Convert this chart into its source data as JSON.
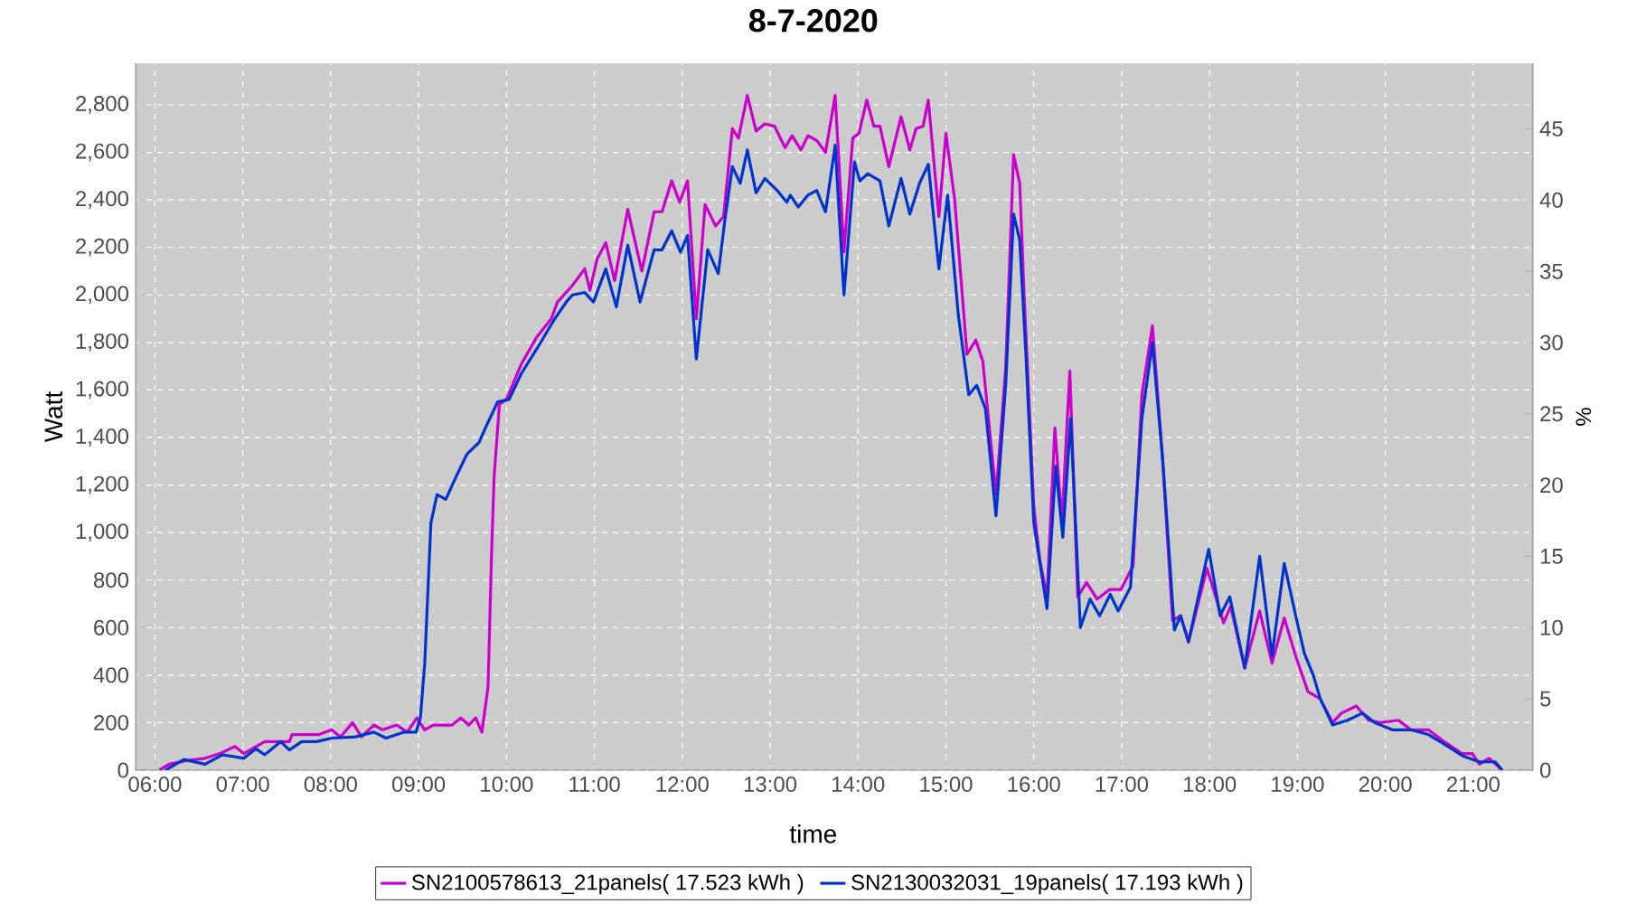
{
  "chart_data": {
    "type": "line",
    "title": "8-7-2020",
    "xlabel": "time",
    "ylabel": "Watt",
    "y2label": "%",
    "xlim": [
      5.78,
      21.68
    ],
    "xticks": [
      {
        "value": 6,
        "label": "06:00"
      },
      {
        "value": 7,
        "label": "07:00"
      },
      {
        "value": 8,
        "label": "08:00"
      },
      {
        "value": 9,
        "label": "09:00"
      },
      {
        "value": 10,
        "label": "10:00"
      },
      {
        "value": 11,
        "label": "11:00"
      },
      {
        "value": 12,
        "label": "12:00"
      },
      {
        "value": 13,
        "label": "13:00"
      },
      {
        "value": 14,
        "label": "14:00"
      },
      {
        "value": 15,
        "label": "15:00"
      },
      {
        "value": 16,
        "label": "16:00"
      },
      {
        "value": 17,
        "label": "17:00"
      },
      {
        "value": 18,
        "label": "18:00"
      },
      {
        "value": 19,
        "label": "19:00"
      },
      {
        "value": 20,
        "label": "20:00"
      },
      {
        "value": 21,
        "label": "21:00"
      }
    ],
    "ylim": [
      0,
      2975
    ],
    "yticks": [
      0,
      200,
      400,
      600,
      800,
      {
        "value": 1000,
        "label": "1,000"
      },
      {
        "value": 1200,
        "label": "1,200"
      },
      {
        "value": 1400,
        "label": "1,400"
      },
      {
        "value": 1600,
        "label": "1,600"
      },
      {
        "value": 1800,
        "label": "1,800"
      },
      {
        "value": 2000,
        "label": "2,000"
      },
      {
        "value": 2200,
        "label": "2,200"
      },
      {
        "value": 2400,
        "label": "2,400"
      },
      {
        "value": 2600,
        "label": "2,600"
      },
      {
        "value": 2800,
        "label": "2,800"
      }
    ],
    "y2lim": [
      0,
      49.6
    ],
    "y2ticks": [
      0,
      5,
      10,
      15,
      20,
      25,
      30,
      35,
      40,
      45
    ],
    "grid": true,
    "legend": "bottom",
    "line_style": "solid",
    "series": [
      {
        "name": "SN2100578613_21panels( 17.523 kWh )",
        "color": "#cc00cc",
        "x": [
          6.05,
          6.16,
          6.36,
          6.57,
          6.74,
          6.91,
          7.01,
          7.25,
          7.53,
          7.56,
          7.87,
          8.01,
          8.11,
          8.25,
          8.35,
          8.49,
          8.59,
          8.75,
          8.87,
          8.98,
          9.07,
          9.17,
          9.38,
          9.48,
          9.57,
          9.65,
          9.72,
          9.79,
          9.83,
          9.86,
          9.92,
          10.0,
          10.17,
          10.34,
          10.51,
          10.58,
          10.75,
          10.89,
          10.95,
          11.03,
          11.13,
          11.23,
          11.38,
          11.54,
          11.68,
          11.77,
          11.88,
          11.97,
          12.06,
          12.16,
          12.26,
          12.38,
          12.47,
          12.57,
          12.64,
          12.74,
          12.84,
          12.94,
          13.05,
          13.17,
          13.25,
          13.35,
          13.43,
          13.53,
          13.63,
          13.74,
          13.84,
          13.94,
          14.01,
          14.1,
          14.18,
          14.25,
          14.35,
          14.49,
          14.59,
          14.66,
          14.74,
          14.8,
          14.92,
          15.0,
          15.1,
          15.24,
          15.34,
          15.42,
          15.57,
          15.68,
          15.77,
          15.84,
          15.89,
          16.0,
          16.07,
          16.15,
          16.24,
          16.32,
          16.41,
          16.5,
          16.6,
          16.72,
          16.86,
          16.99,
          17.13,
          17.23,
          17.35,
          17.46,
          17.58,
          17.67,
          17.76,
          17.97,
          18.16,
          18.24,
          18.4,
          18.57,
          18.71,
          18.85,
          18.98,
          19.12,
          19.26,
          19.4,
          19.5,
          19.67,
          19.81,
          19.94,
          20.15,
          20.29,
          20.49,
          20.67,
          20.87,
          20.99,
          21.07,
          21.18,
          21.33
        ],
        "values": [
          0,
          25,
          40,
          50,
          70,
          100,
          70,
          120,
          120,
          150,
          150,
          170,
          140,
          200,
          140,
          190,
          170,
          190,
          160,
          220,
          170,
          190,
          190,
          220,
          190,
          220,
          160,
          350,
          910,
          1240,
          1540,
          1560,
          1710,
          1820,
          1900,
          1970,
          2040,
          2110,
          2020,
          2150,
          2220,
          2060,
          2360,
          2100,
          2350,
          2350,
          2480,
          2390,
          2480,
          1900,
          2380,
          2290,
          2330,
          2700,
          2660,
          2840,
          2690,
          2720,
          2710,
          2620,
          2670,
          2610,
          2670,
          2650,
          2600,
          2840,
          2180,
          2660,
          2680,
          2820,
          2710,
          2710,
          2540,
          2750,
          2610,
          2700,
          2710,
          2820,
          2330,
          2680,
          2400,
          1750,
          1810,
          1720,
          1160,
          1690,
          2590,
          2470,
          2000,
          1110,
          880,
          730,
          1440,
          1040,
          1680,
          730,
          790,
          720,
          760,
          760,
          860,
          1580,
          1870,
          1340,
          630,
          650,
          540,
          850,
          620,
          690,
          430,
          670,
          450,
          640,
          480,
          330,
          300,
          200,
          240,
          270,
          210,
          200,
          210,
          170,
          170,
          120,
          70,
          70,
          25,
          50,
          0
        ]
      },
      {
        "name": "SN2130032031_19panels( 17.193 kWh )",
        "color": "#0033cc",
        "x": [
          6.12,
          6.33,
          6.57,
          6.77,
          7.01,
          7.15,
          7.25,
          7.43,
          7.53,
          7.67,
          7.84,
          8.01,
          8.28,
          8.49,
          8.63,
          8.83,
          8.97,
          9.02,
          9.07,
          9.14,
          9.21,
          9.31,
          9.42,
          9.55,
          9.69,
          9.76,
          9.9,
          10.03,
          10.17,
          10.34,
          10.55,
          10.68,
          10.75,
          10.89,
          10.99,
          11.13,
          11.25,
          11.38,
          11.52,
          11.68,
          11.77,
          11.88,
          11.98,
          12.06,
          12.16,
          12.29,
          12.41,
          12.48,
          12.57,
          12.66,
          12.74,
          12.84,
          12.94,
          13.08,
          13.19,
          13.23,
          13.32,
          13.43,
          13.53,
          13.63,
          13.74,
          13.84,
          13.96,
          14.02,
          14.11,
          14.25,
          14.35,
          14.49,
          14.59,
          14.7,
          14.8,
          14.92,
          15.02,
          15.14,
          15.26,
          15.35,
          15.45,
          15.57,
          15.68,
          15.77,
          15.84,
          15.91,
          16.0,
          16.15,
          16.25,
          16.33,
          16.42,
          16.53,
          16.64,
          16.75,
          16.87,
          16.96,
          17.1,
          17.23,
          17.35,
          17.47,
          17.6,
          17.67,
          17.76,
          17.99,
          18.12,
          18.23,
          18.4,
          18.57,
          18.71,
          18.85,
          18.98,
          19.08,
          19.18,
          19.26,
          19.4,
          19.57,
          19.74,
          19.88,
          20.08,
          20.29,
          20.49,
          20.67,
          20.88,
          21.07,
          21.25,
          21.33
        ],
        "values": [
          0,
          45,
          25,
          65,
          50,
          90,
          65,
          120,
          85,
          120,
          120,
          135,
          140,
          160,
          135,
          160,
          160,
          220,
          450,
          1040,
          1160,
          1140,
          1230,
          1330,
          1380,
          1440,
          1550,
          1560,
          1670,
          1770,
          1900,
          1970,
          2000,
          2010,
          1970,
          2110,
          1950,
          2210,
          1970,
          2190,
          2190,
          2270,
          2180,
          2250,
          1730,
          2190,
          2090,
          2300,
          2540,
          2470,
          2610,
          2430,
          2490,
          2440,
          2390,
          2420,
          2370,
          2420,
          2440,
          2350,
          2630,
          2000,
          2560,
          2480,
          2510,
          2480,
          2290,
          2490,
          2340,
          2470,
          2550,
          2110,
          2420,
          1920,
          1580,
          1620,
          1520,
          1070,
          1620,
          2340,
          2230,
          1750,
          1040,
          680,
          1280,
          980,
          1480,
          600,
          720,
          650,
          740,
          670,
          770,
          1480,
          1800,
          1290,
          590,
          650,
          540,
          930,
          650,
          730,
          430,
          900,
          480,
          870,
          650,
          490,
          400,
          300,
          190,
          210,
          240,
          200,
          170,
          170,
          150,
          110,
          60,
          35,
          35,
          0
        ]
      }
    ]
  }
}
